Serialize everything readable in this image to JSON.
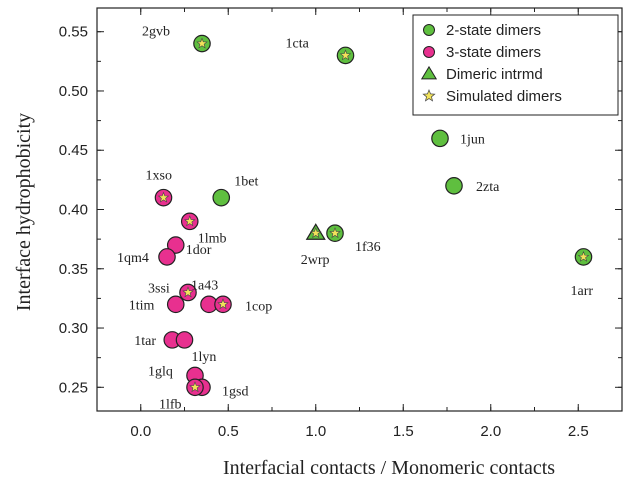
{
  "chart_data": {
    "type": "scatter",
    "xlabel": "Interfacial contacts / Monomeric contacts",
    "ylabel": "Interface hydrophobicity",
    "xlim": [
      -0.25,
      2.75
    ],
    "ylim": [
      0.23,
      0.57
    ],
    "xticks": [
      "0.0",
      "0.5",
      "1.0",
      "1.5",
      "2.0",
      "2.5"
    ],
    "yticks": [
      "0.25",
      "0.30",
      "0.35",
      "0.40",
      "0.45",
      "0.50",
      "0.55"
    ],
    "legend_position": "top-right",
    "legend": [
      {
        "name": "2-state dimers",
        "marker": "circle",
        "color": "#5fbf3f"
      },
      {
        "name": "3-state dimers",
        "marker": "circle",
        "color": "#e8308f"
      },
      {
        "name": "Dimeric intrmd",
        "marker": "triangle",
        "color": "#5fbf3f"
      },
      {
        "name": "Simulated dimers",
        "marker": "star",
        "color": "#f2e35a"
      }
    ],
    "points": [
      {
        "label": "2gvb",
        "x": 0.35,
        "y": 0.54,
        "group": "2-state",
        "simulated": true
      },
      {
        "label": "1cta",
        "x": 1.17,
        "y": 0.53,
        "group": "2-state",
        "simulated": true
      },
      {
        "label": "1jun",
        "x": 1.71,
        "y": 0.46,
        "group": "2-state",
        "simulated": false
      },
      {
        "label": "2zta",
        "x": 1.79,
        "y": 0.42,
        "group": "2-state",
        "simulated": false
      },
      {
        "label": "1bet",
        "x": 0.46,
        "y": 0.41,
        "group": "2-state",
        "simulated": false
      },
      {
        "label": "1f36",
        "x": 1.11,
        "y": 0.38,
        "group": "2-state",
        "simulated": true
      },
      {
        "label": "1arr",
        "x": 2.53,
        "y": 0.36,
        "group": "2-state",
        "simulated": true
      },
      {
        "label": "2wrp",
        "x": 1.0,
        "y": 0.38,
        "group": "intermediate",
        "simulated": true
      },
      {
        "label": "1xso",
        "x": 0.13,
        "y": 0.41,
        "group": "3-state",
        "simulated": true
      },
      {
        "label": "1lmb",
        "x": 0.28,
        "y": 0.39,
        "group": "3-state",
        "simulated": true
      },
      {
        "label": "1dor",
        "x": 0.2,
        "y": 0.37,
        "group": "3-state",
        "simulated": false
      },
      {
        "label": "1qm4",
        "x": 0.15,
        "y": 0.36,
        "group": "3-state",
        "simulated": false
      },
      {
        "label": "3ssi",
        "x": 0.27,
        "y": 0.33,
        "group": "3-state",
        "simulated": true
      },
      {
        "label": "1a43",
        "x": 0.39,
        "y": 0.32,
        "group": "3-state",
        "simulated": false
      },
      {
        "label": "1cop",
        "x": 0.47,
        "y": 0.32,
        "group": "3-state",
        "simulated": true
      },
      {
        "label": "1tim",
        "x": 0.2,
        "y": 0.32,
        "group": "3-state",
        "simulated": false
      },
      {
        "label": "1tar",
        "x": 0.18,
        "y": 0.29,
        "group": "3-state",
        "simulated": false
      },
      {
        "label": "1lyn",
        "x": 0.25,
        "y": 0.29,
        "group": "3-state",
        "simulated": false
      },
      {
        "label": "1glq",
        "x": 0.31,
        "y": 0.26,
        "group": "3-state",
        "simulated": false
      },
      {
        "label": "1gsd",
        "x": 0.35,
        "y": 0.25,
        "group": "3-state",
        "simulated": false
      },
      {
        "label": "1lfb",
        "x": 0.31,
        "y": 0.25,
        "group": "3-state",
        "simulated": true
      }
    ]
  }
}
